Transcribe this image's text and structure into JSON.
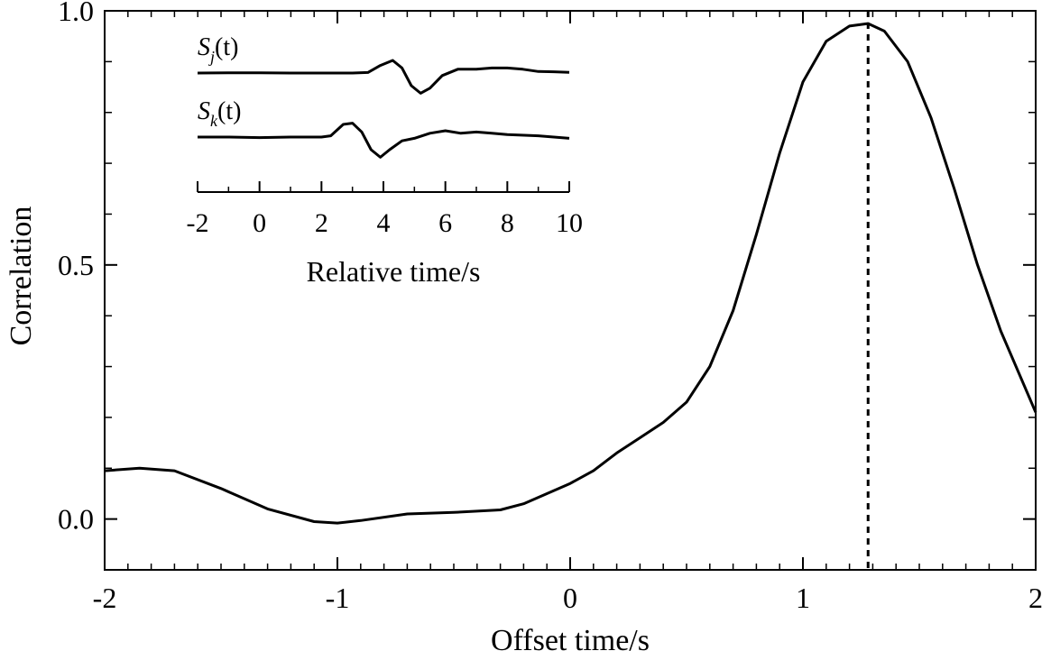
{
  "chart_data": [
    {
      "type": "line",
      "xlabel": "Offset time/s",
      "ylabel": "Correlation",
      "xlim": [
        -2,
        2
      ],
      "ylim": [
        -0.1,
        1.0
      ],
      "xticks": [
        "-2",
        "-1",
        "0",
        "1",
        "2"
      ],
      "yticks": [
        "0.0",
        "0.5",
        "1.0"
      ],
      "x": [
        -2.0,
        -1.85,
        -1.7,
        -1.5,
        -1.3,
        -1.1,
        -1.0,
        -0.9,
        -0.7,
        -0.5,
        -0.3,
        -0.2,
        -0.1,
        0.0,
        0.1,
        0.2,
        0.3,
        0.4,
        0.5,
        0.6,
        0.7,
        0.8,
        0.9,
        1.0,
        1.1,
        1.2,
        1.28,
        1.35,
        1.45,
        1.55,
        1.65,
        1.75,
        1.85,
        2.0
      ],
      "y": [
        0.095,
        0.1,
        0.095,
        0.06,
        0.02,
        -0.005,
        -0.008,
        -0.003,
        0.01,
        0.013,
        0.018,
        0.03,
        0.05,
        0.07,
        0.095,
        0.13,
        0.16,
        0.19,
        0.23,
        0.3,
        0.41,
        0.56,
        0.72,
        0.86,
        0.94,
        0.97,
        0.975,
        0.96,
        0.9,
        0.79,
        0.65,
        0.5,
        0.37,
        0.21
      ],
      "vline": {
        "x": 1.28,
        "style": "dotted"
      }
    },
    {
      "type": "line",
      "inset": true,
      "xlabel": "Relative time/s",
      "xlim": [
        -2,
        10
      ],
      "xticks": [
        "-2",
        "0",
        "2",
        "4",
        "6",
        "8",
        "10"
      ],
      "series": [
        {
          "name": "S_j(t)",
          "label_main": "S",
          "label_sub": "j",
          "label_arg": "(t)",
          "x": [
            -2,
            -1,
            0,
            1,
            2,
            3,
            3.5,
            3.9,
            4.3,
            4.6,
            4.9,
            5.2,
            5.5,
            5.9,
            6.4,
            7,
            7.5,
            8,
            8.5,
            9,
            9.5,
            10
          ],
          "y": [
            0,
            0.01,
            0.01,
            0,
            0,
            0,
            0.02,
            0.3,
            0.5,
            0.2,
            -0.5,
            -0.8,
            -0.6,
            -0.1,
            0.15,
            0.15,
            0.2,
            0.2,
            0.15,
            0.06,
            0.05,
            0.03
          ]
        },
        {
          "name": "S_k(t)",
          "label_main": "S",
          "label_sub": "k",
          "label_arg": "(t)",
          "x": [
            -2,
            -1,
            0,
            1,
            2,
            2.3,
            2.7,
            3.0,
            3.3,
            3.6,
            3.9,
            4.2,
            4.6,
            5.0,
            5.5,
            6.0,
            6.5,
            7.0,
            7.5,
            8.0,
            9.0,
            10
          ],
          "y": [
            0,
            0,
            -0.02,
            0,
            0,
            0.05,
            0.5,
            0.55,
            0.2,
            -0.5,
            -0.8,
            -0.5,
            -0.15,
            -0.05,
            0.15,
            0.25,
            0.15,
            0.2,
            0.15,
            0.1,
            0.05,
            -0.05
          ]
        }
      ]
    }
  ]
}
